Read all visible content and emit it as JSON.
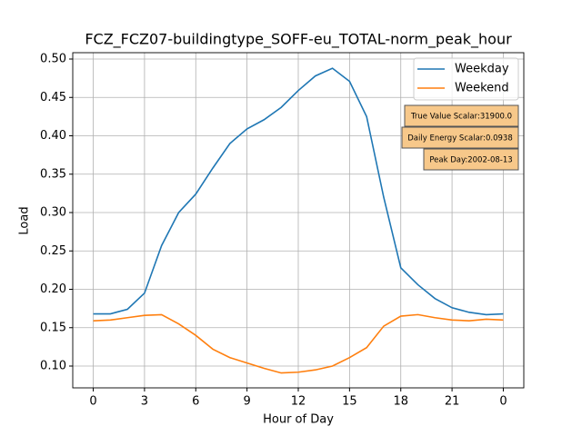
{
  "chart_data": {
    "type": "line",
    "title": "FCZ_FCZ07-buildingtype_SOFF-eu_TOTAL-norm_peak_hour",
    "xlabel": "Hour of Day",
    "ylabel": "Load",
    "x": [
      0,
      1,
      2,
      3,
      4,
      5,
      6,
      7,
      8,
      9,
      10,
      11,
      12,
      13,
      14,
      15,
      16,
      17,
      18,
      19,
      20,
      21,
      22,
      23,
      24
    ],
    "series": [
      {
        "name": "Weekday",
        "color": "#1f77b4",
        "values": [
          0.168,
          0.168,
          0.174,
          0.195,
          0.257,
          0.3,
          0.324,
          0.358,
          0.39,
          0.409,
          0.421,
          0.437,
          0.459,
          0.478,
          0.488,
          0.471,
          0.425,
          0.32,
          0.228,
          0.206,
          0.188,
          0.176,
          0.17,
          0.167,
          0.168
        ]
      },
      {
        "name": "Weekend",
        "color": "#ff7f0e",
        "values": [
          0.159,
          0.16,
          0.163,
          0.166,
          0.167,
          0.155,
          0.14,
          0.122,
          0.111,
          0.104,
          0.097,
          0.091,
          0.092,
          0.095,
          0.1,
          0.111,
          0.124,
          0.152,
          0.165,
          0.167,
          0.163,
          0.16,
          0.159,
          0.161,
          0.16
        ]
      }
    ],
    "xlim": [
      -1.2,
      25.2
    ],
    "ylim": [
      0.0716,
      0.5083
    ],
    "xticks": [
      0,
      3,
      6,
      9,
      12,
      15,
      18,
      21,
      {
        "value": 24,
        "label": "0"
      }
    ],
    "yticks": [
      {
        "value": 0.1,
        "label": "0.10"
      },
      0.15,
      {
        "value": 0.2,
        "label": "0.20"
      },
      0.25,
      {
        "value": 0.3,
        "label": "0.30"
      },
      0.35,
      {
        "value": 0.4,
        "label": "0.40"
      },
      0.45,
      {
        "value": 0.5,
        "label": "0.50"
      }
    ],
    "grid": true,
    "legend": "upper right",
    "annotations": [
      "True Value Scalar:31900.0",
      "Daily Energy Scalar:0.0938",
      "Peak Day:2002-08-13"
    ]
  }
}
